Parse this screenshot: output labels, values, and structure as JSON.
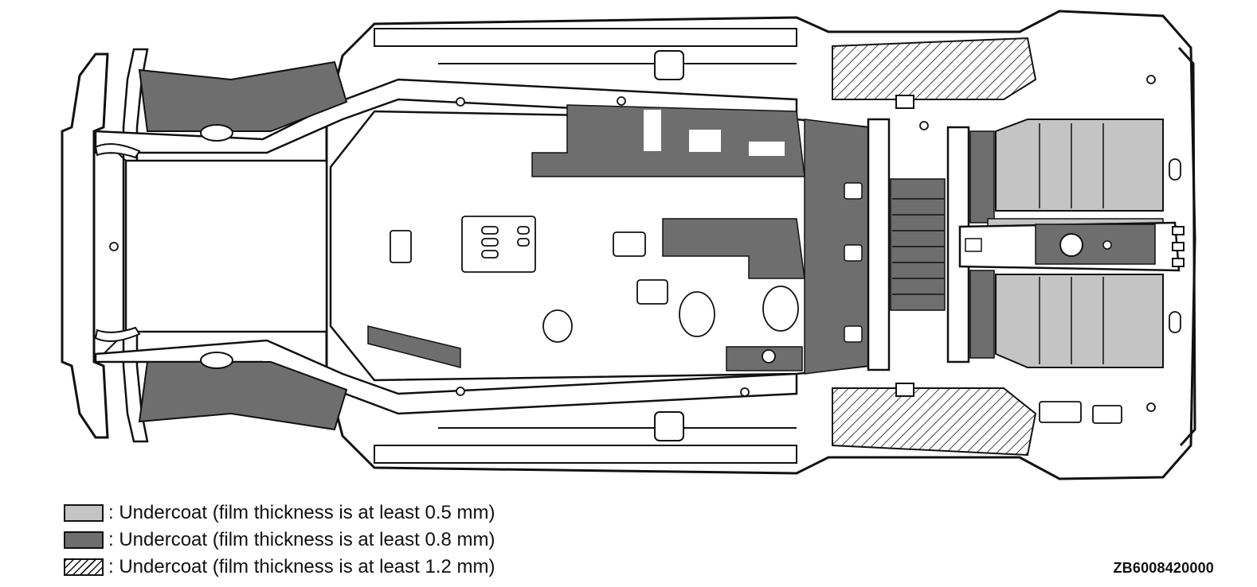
{
  "diagram": {
    "subject": "vehicle underbody, bottom view",
    "colors": {
      "outline": "#111111",
      "light_fill": "#c4c4c4",
      "dark_fill": "#6e6e6e",
      "hatch": "#111111",
      "background": "#ffffff"
    }
  },
  "legend": {
    "items": [
      {
        "pattern": "light",
        "label": ": Undercoat (film thickness is at least 0.5 mm)"
      },
      {
        "pattern": "dark",
        "label": ": Undercoat (film thickness is at least 0.8 mm)"
      },
      {
        "pattern": "hatched",
        "label": ": Undercoat (film thickness is at least 1.2 mm)"
      }
    ]
  },
  "figure_code": "ZB6008420000"
}
